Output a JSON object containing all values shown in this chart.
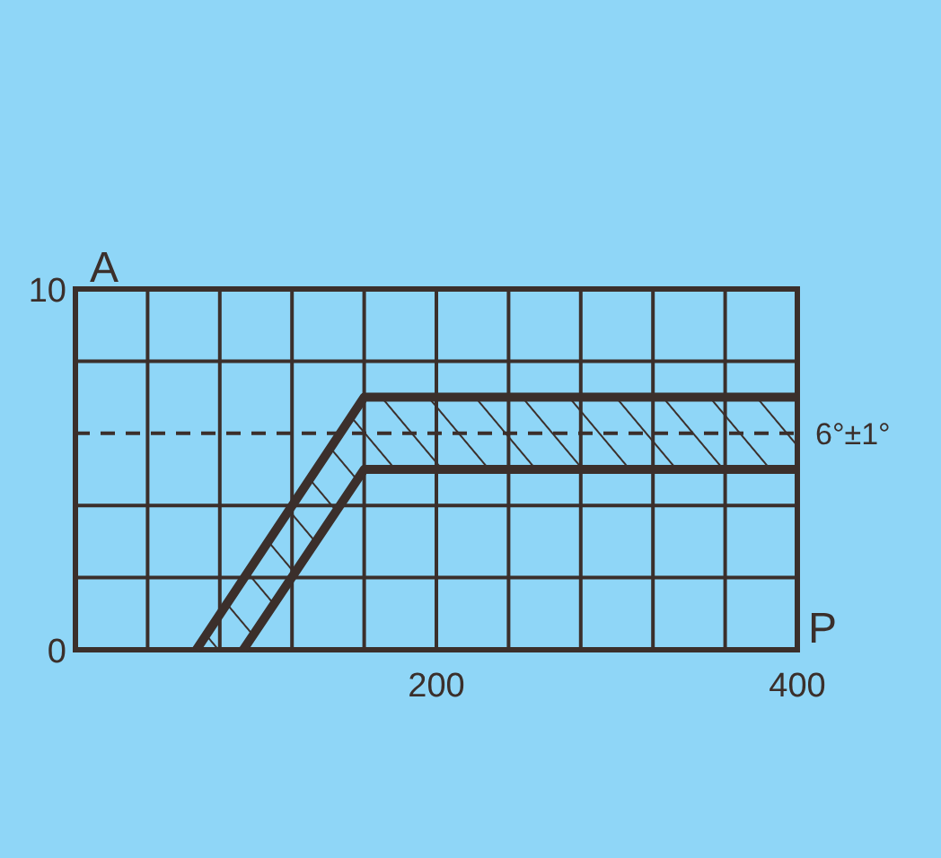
{
  "chart_data": {
    "type": "line",
    "xlabel": "P",
    "ylabel": "A",
    "xlim": [
      0,
      400
    ],
    "ylim": [
      0,
      10
    ],
    "xticks": [
      {
        "value": 0,
        "label": null
      },
      {
        "value": 40,
        "label": null
      },
      {
        "value": 80,
        "label": null
      },
      {
        "value": 120,
        "label": null
      },
      {
        "value": 160,
        "label": null
      },
      200,
      {
        "value": 240,
        "label": null
      },
      {
        "value": 280,
        "label": null
      },
      {
        "value": 320,
        "label": null
      },
      {
        "value": 360,
        "label": null
      },
      400
    ],
    "yticks": [
      0,
      {
        "value": 2,
        "label": null
      },
      {
        "value": 4,
        "label": null
      },
      {
        "value": 8,
        "label": null
      },
      10
    ],
    "grid": true,
    "marker": "none",
    "line_style": "solid",
    "series": [
      {
        "color": "#3b2f2b",
        "x": [
          67,
          160,
          400
        ],
        "values": [
          0,
          7,
          7
        ]
      },
      {
        "color": "#3b2f2b",
        "x": [
          93,
          160,
          400
        ],
        "values": [
          0,
          5,
          5
        ]
      }
    ],
    "ref_lines": [
      {
        "axis": "y",
        "value": 6,
        "label": "6°±1°",
        "color": "#3b2f2b",
        "line_style": "dashed"
      }
    ]
  }
}
